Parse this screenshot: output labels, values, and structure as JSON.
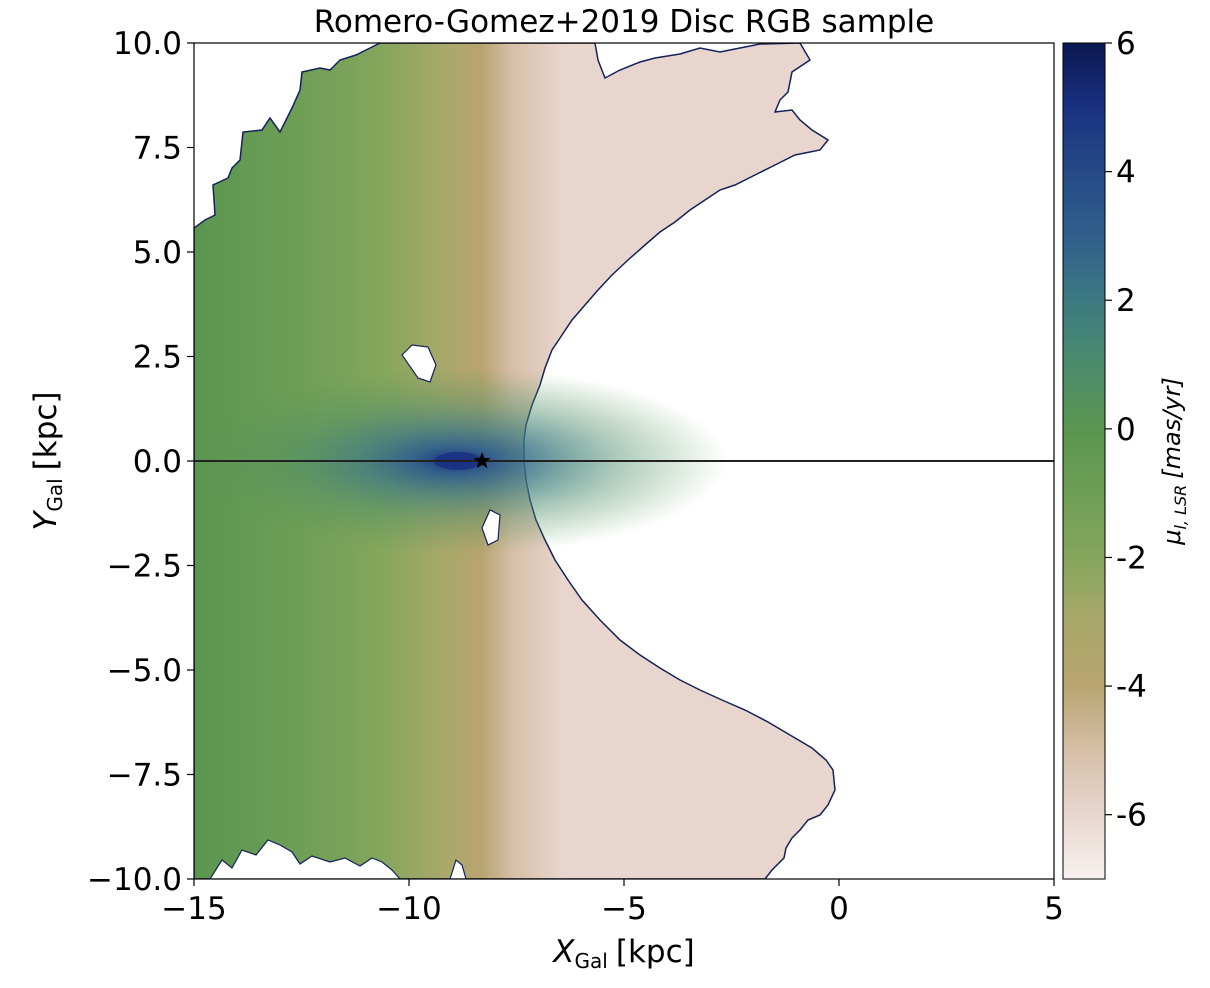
{
  "chart_data": {
    "type": "heatmap",
    "title": "Romero-Gomez+2019 Disc RGB sample",
    "xlabel": {
      "symbol": "X",
      "subscript": "Gal",
      "unit": "[kpc]"
    },
    "ylabel": {
      "symbol": "Y",
      "subscript": "Gal",
      "unit": "[kpc]"
    },
    "xlim": [
      -15,
      5
    ],
    "ylim": [
      -10,
      10
    ],
    "x_ticks": [
      -15,
      -10,
      -5,
      0,
      5
    ],
    "x_tick_labels": [
      "−15",
      "−10",
      "−5",
      "0",
      "5"
    ],
    "y_ticks": [
      10,
      7.5,
      5,
      2.5,
      0,
      -2.5,
      -5,
      -7.5,
      -10
    ],
    "y_tick_labels": [
      "10.0",
      "7.5",
      "5.0",
      "2.5",
      "0.0",
      "−2.5",
      "−5.0",
      "−7.5",
      "−10.0"
    ],
    "colorbar": {
      "label": {
        "symbol": "μ",
        "subscript": "l, LSR",
        "unit": "[mas/yr]"
      },
      "range": [
        -7,
        6
      ],
      "ticks": [
        6,
        4,
        2,
        0,
        -2,
        -4,
        -6
      ],
      "tick_labels": [
        "6",
        "4",
        "2",
        "0",
        "-2",
        "-4",
        "-6"
      ],
      "colors": {
        "-7": "#f7f1ef",
        "-6": "#e8d6ce",
        "-5": "#d7bfa8",
        "-4": "#b9a470",
        "-3": "#a9a86a",
        "-2": "#85a65d",
        "-1": "#6e9e55",
        "0": "#5a9650",
        "1": "#4b8c6c",
        "2": "#3d7a82",
        "3": "#2f5f8c",
        "4": "#254a86",
        "5": "#1a3182",
        "6": "#0a1850"
      }
    },
    "reference_line": {
      "y": 0
    },
    "sun_marker": {
      "x": -8.3,
      "y": 0,
      "symbol": "star"
    }
  }
}
